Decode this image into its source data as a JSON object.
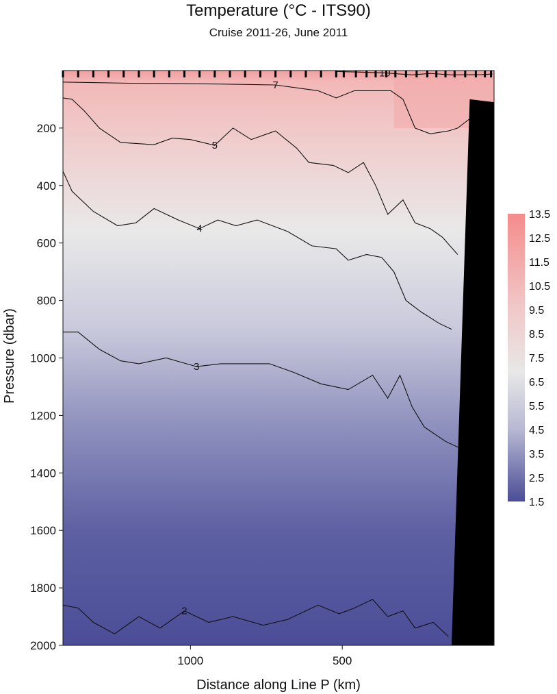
{
  "chart_data": {
    "type": "heatmap",
    "title": "Temperature  (°C - ITS90)",
    "subtitle": "Cruise 2011-26,  June 2011",
    "xlabel": "Distance along Line P  (km)",
    "ylabel": "Pressure  (dbar)",
    "x_ticks": [
      1000,
      500
    ],
    "x_tick_labels": [
      "1000",
      "500"
    ],
    "x_range": [
      1420,
      0
    ],
    "y_ticks": [
      200,
      400,
      600,
      800,
      1000,
      1200,
      1400,
      1600,
      1800,
      2000
    ],
    "y_tick_labels": [
      "200",
      "400",
      "600",
      "800",
      "1000",
      "1200",
      "1400",
      "1600",
      "1800",
      "2000"
    ],
    "y_range": [
      0,
      2000
    ],
    "station_ticks_km": [
      1420,
      1370,
      1320,
      1270,
      1220,
      1170,
      1120,
      1070,
      1020,
      970,
      920,
      870,
      820,
      770,
      720,
      670,
      620,
      570,
      520,
      495,
      455,
      420,
      390,
      355,
      325,
      290,
      255,
      220,
      190,
      160,
      130,
      95,
      60,
      30,
      10
    ],
    "colorbar": {
      "label_values": [
        "13.5",
        "12.5",
        "11.5",
        "10.5",
        "9.5",
        "8.5",
        "7.5",
        "6.5",
        "5.5",
        "4.5",
        "3.5",
        "2.5",
        "1.5"
      ],
      "range": [
        1.5,
        13.5
      ],
      "colors": {
        "low": "#4b4d97",
        "mid": "#e8e8e8",
        "high": "#f58c8c"
      }
    },
    "contours": [
      {
        "level": 10,
        "label": "10",
        "points": [
          [
            520,
            3
          ],
          [
            455,
            5
          ],
          [
            360,
            8
          ],
          [
            270,
            15
          ],
          [
            210,
            10
          ],
          [
            140,
            15
          ],
          [
            40,
            14
          ],
          [
            5,
            12
          ]
        ]
      },
      {
        "level": 7,
        "label": "7",
        "points": [
          [
            1420,
            40
          ],
          [
            1320,
            42
          ],
          [
            1200,
            44
          ],
          [
            1050,
            45
          ],
          [
            900,
            47
          ],
          [
            720,
            50
          ],
          [
            580,
            70
          ],
          [
            520,
            95
          ],
          [
            460,
            70
          ],
          [
            340,
            70
          ],
          [
            300,
            100
          ],
          [
            260,
            200
          ],
          [
            210,
            220
          ],
          [
            150,
            210
          ],
          [
            120,
            200
          ],
          [
            70,
            160
          ],
          [
            30,
            175
          ]
        ]
      },
      {
        "level": 5,
        "label": "5",
        "points": [
          [
            1420,
            95
          ],
          [
            1390,
            100
          ],
          [
            1350,
            140
          ],
          [
            1300,
            200
          ],
          [
            1230,
            250
          ],
          [
            1120,
            258
          ],
          [
            1060,
            235
          ],
          [
            1000,
            240
          ],
          [
            920,
            260
          ],
          [
            860,
            200
          ],
          [
            800,
            240
          ],
          [
            720,
            210
          ],
          [
            650,
            270
          ],
          [
            610,
            320
          ],
          [
            530,
            330
          ],
          [
            480,
            355
          ],
          [
            430,
            320
          ],
          [
            390,
            400
          ],
          [
            350,
            500
          ],
          [
            300,
            450
          ],
          [
            260,
            530
          ],
          [
            210,
            550
          ],
          [
            170,
            580
          ],
          [
            120,
            640
          ]
        ]
      },
      {
        "level": 4,
        "label": "4",
        "points": [
          [
            1420,
            350
          ],
          [
            1390,
            420
          ],
          [
            1320,
            490
          ],
          [
            1240,
            540
          ],
          [
            1180,
            530
          ],
          [
            1120,
            480
          ],
          [
            1040,
            520
          ],
          [
            970,
            550
          ],
          [
            910,
            520
          ],
          [
            850,
            540
          ],
          [
            780,
            520
          ],
          [
            680,
            560
          ],
          [
            600,
            610
          ],
          [
            520,
            620
          ],
          [
            480,
            660
          ],
          [
            420,
            640
          ],
          [
            370,
            650
          ],
          [
            330,
            700
          ],
          [
            290,
            800
          ],
          [
            240,
            840
          ],
          [
            180,
            880
          ],
          [
            140,
            900
          ]
        ]
      },
      {
        "level": 3,
        "label": "3",
        "points": [
          [
            1420,
            910
          ],
          [
            1370,
            910
          ],
          [
            1300,
            970
          ],
          [
            1230,
            1010
          ],
          [
            1170,
            1020
          ],
          [
            1080,
            1000
          ],
          [
            980,
            1030
          ],
          [
            900,
            1020
          ],
          [
            820,
            1020
          ],
          [
            740,
            1020
          ],
          [
            660,
            1050
          ],
          [
            570,
            1090
          ],
          [
            480,
            1110
          ],
          [
            400,
            1060
          ],
          [
            350,
            1140
          ],
          [
            310,
            1060
          ],
          [
            270,
            1170
          ],
          [
            230,
            1240
          ],
          [
            160,
            1290
          ],
          [
            100,
            1320
          ]
        ]
      },
      {
        "level": 2,
        "label": "2",
        "points": [
          [
            1420,
            1860
          ],
          [
            1370,
            1870
          ],
          [
            1320,
            1920
          ],
          [
            1250,
            1960
          ],
          [
            1170,
            1900
          ],
          [
            1100,
            1940
          ],
          [
            1020,
            1880
          ],
          [
            940,
            1920
          ],
          [
            860,
            1900
          ],
          [
            760,
            1930
          ],
          [
            680,
            1910
          ],
          [
            580,
            1860
          ],
          [
            510,
            1890
          ],
          [
            460,
            1870
          ],
          [
            400,
            1840
          ],
          [
            350,
            1900
          ],
          [
            300,
            1880
          ],
          [
            260,
            1940
          ],
          [
            200,
            1920
          ],
          [
            150,
            1970
          ]
        ]
      }
    ],
    "bottom_mask": [
      [
        80,
        100
      ],
      [
        0,
        110
      ],
      [
        0,
        2000
      ],
      [
        140,
        2000
      ]
    ]
  }
}
